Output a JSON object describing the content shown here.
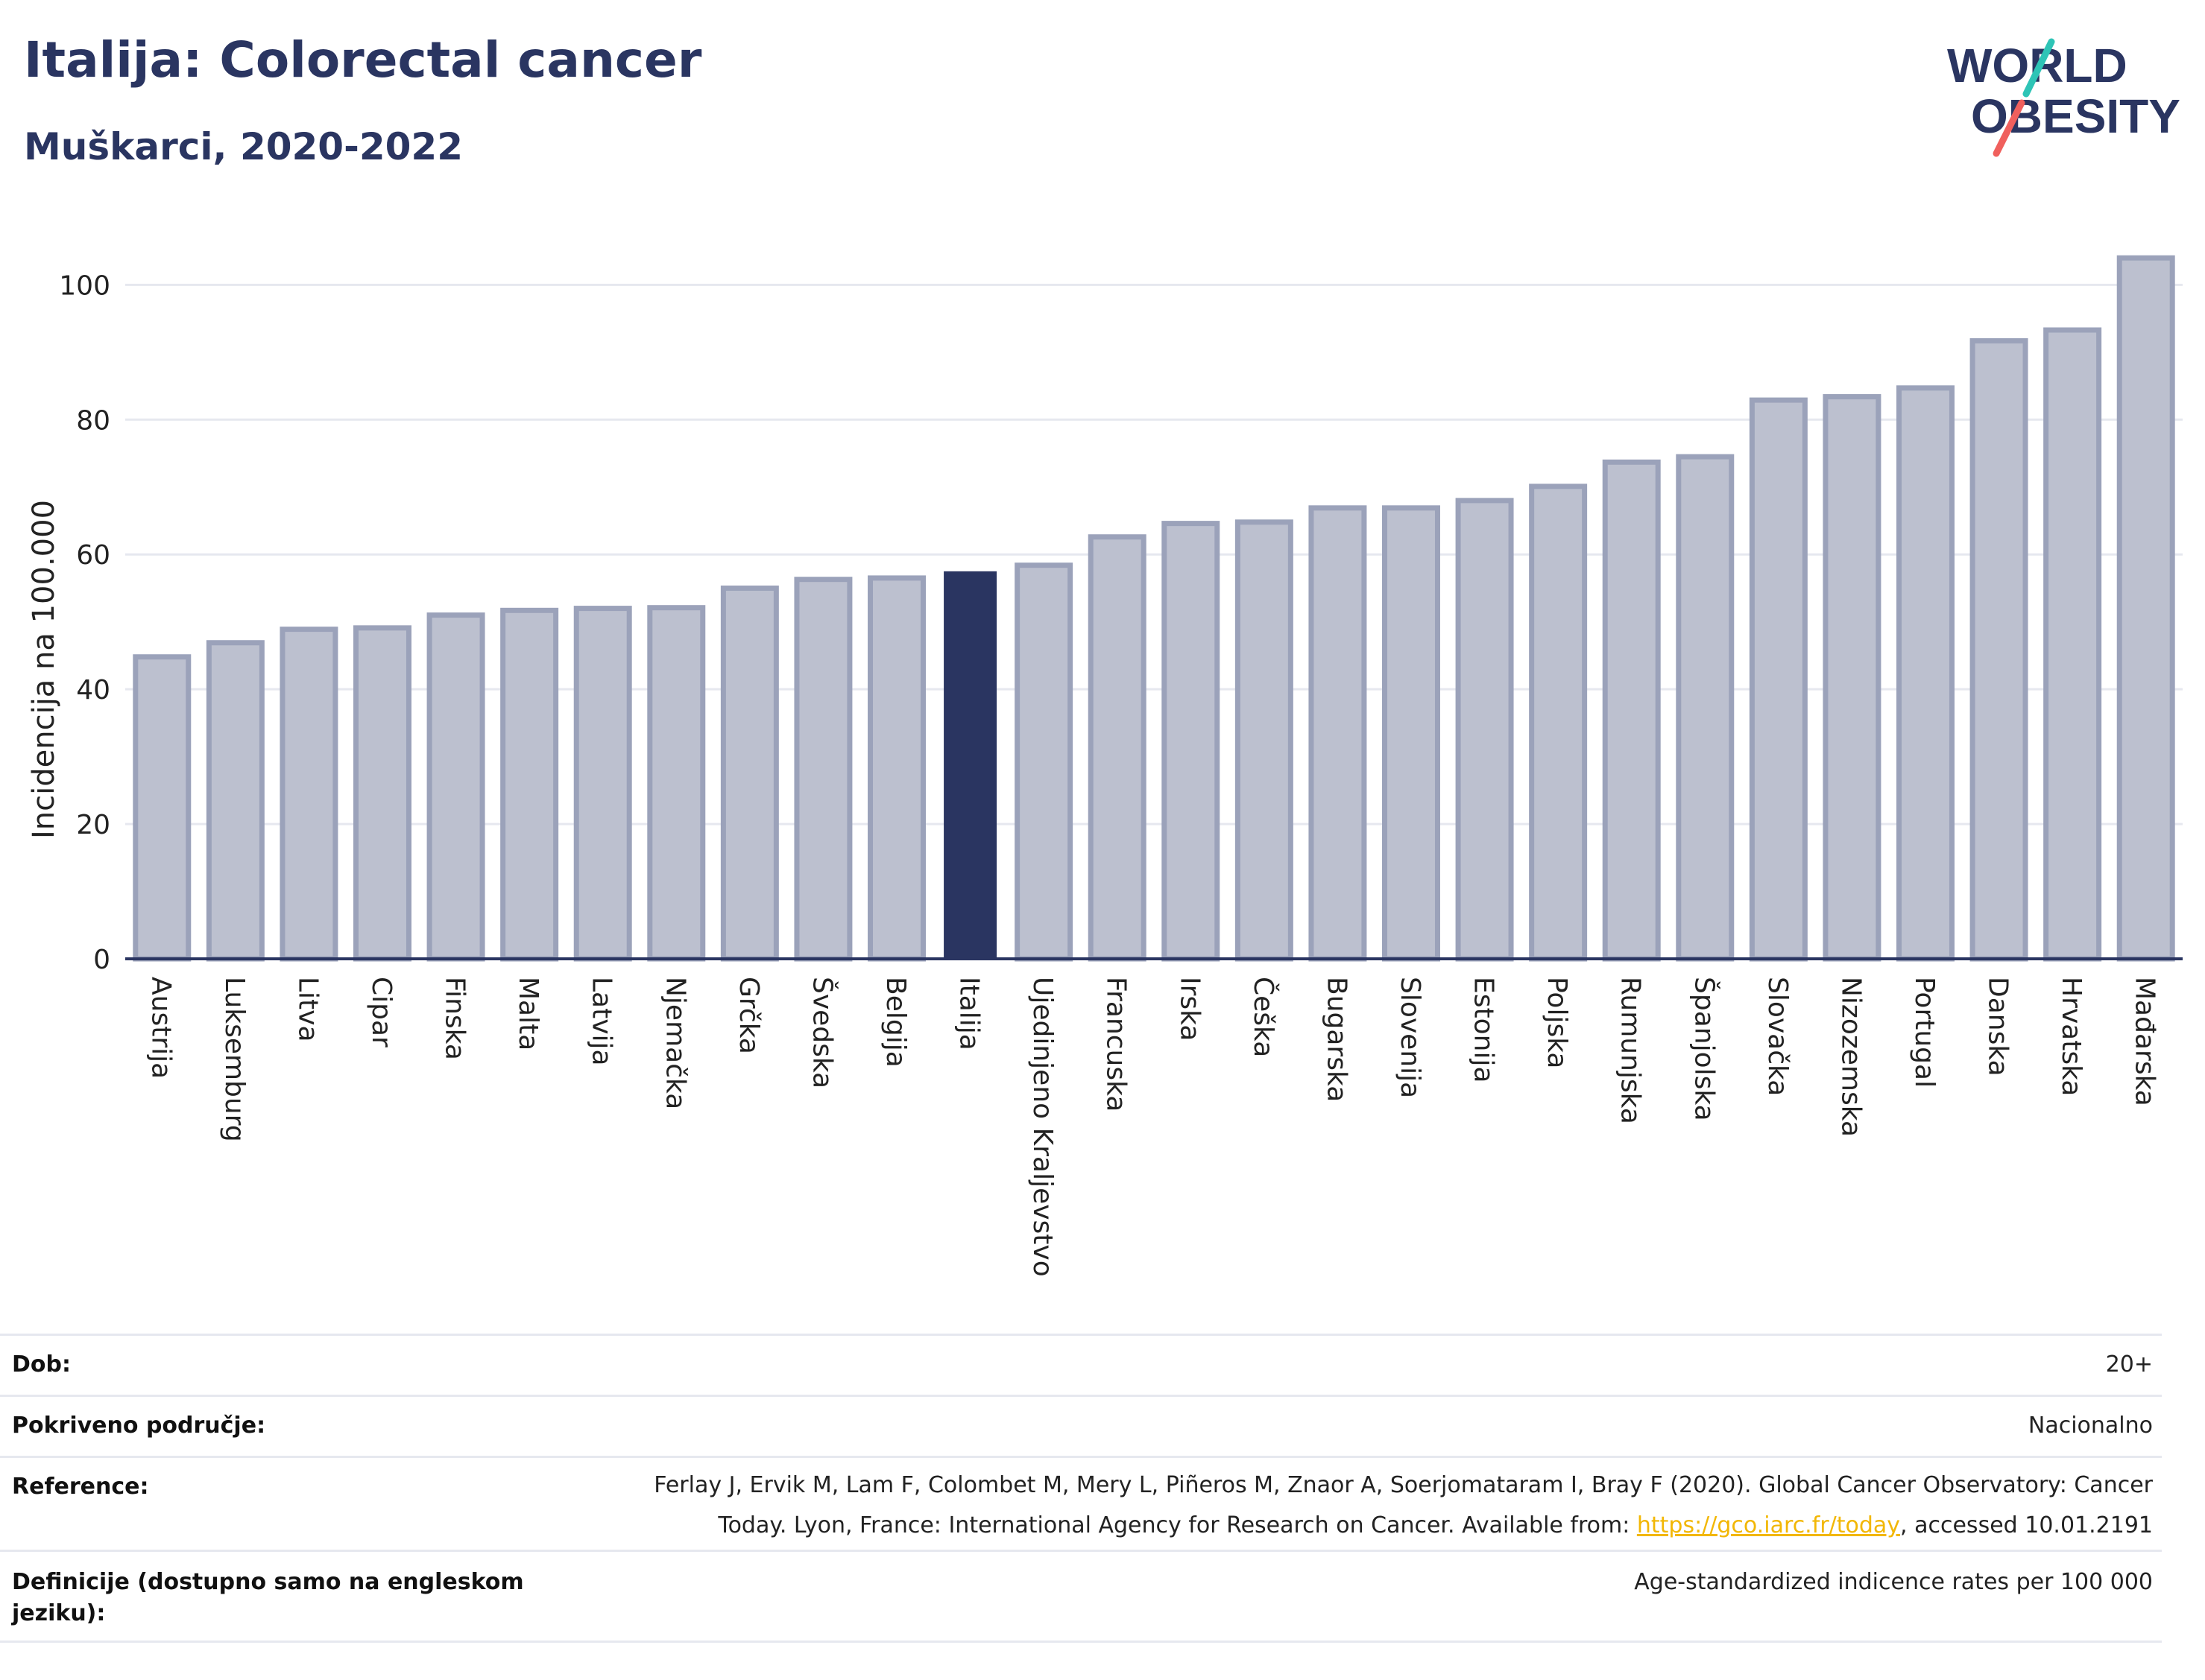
{
  "header": {
    "title": "Italija: Colorectal cancer",
    "subtitle": "Muškarci, 2020-2022"
  },
  "logo": {
    "line1": "WORLD",
    "line2": "OBESITY",
    "accent_colors": [
      "#2ec4b6",
      "#f0605d"
    ]
  },
  "colors": {
    "bar": "#bcc0cf",
    "bar_stroke": "#9ba2ba",
    "highlight": "#2a3561",
    "axis": "#2a3561",
    "grid": "#e6e8ef",
    "link": "#f2b705"
  },
  "chart_data": {
    "type": "bar",
    "ylabel": "Incidencija na 100.000",
    "ylim": [
      0,
      108
    ],
    "yticks": [
      0,
      20,
      40,
      60,
      80,
      100
    ],
    "grid": true,
    "highlight": "Italija",
    "categories": [
      "Austrija",
      "Luksemburg",
      "Litva",
      "Cipar",
      "Finska",
      "Malta",
      "Latvija",
      "Njemačka",
      "Grčka",
      "Švedska",
      "Belgija",
      "Italija",
      "Ujedinjeno Kraljevstvo",
      "Francuska",
      "Irska",
      "Češka",
      "Bugarska",
      "Slovenija",
      "Estonija",
      "Poljska",
      "Rumunjska",
      "Španjolska",
      "Slovačka",
      "Nizozemska",
      "Portugal",
      "Danska",
      "Hrvatska",
      "Mađarska"
    ],
    "values": [
      44.8,
      46.9,
      48.9,
      49.1,
      51.0,
      51.7,
      52.0,
      52.1,
      55.0,
      56.3,
      56.5,
      57.5,
      58.4,
      62.6,
      64.6,
      64.8,
      66.9,
      66.9,
      68.0,
      70.1,
      73.7,
      74.5,
      82.9,
      83.4,
      84.7,
      91.7,
      93.3,
      104.0
    ]
  },
  "meta": {
    "age_label": "Dob:",
    "age_value": "20+",
    "coverage_label": "Pokriveno područje:",
    "coverage_value": "Nacionalno",
    "reference_label": "Reference:",
    "reference_line1": "Ferlay J, Ervik M, Lam F, Colombet M, Mery L, Piñeros M, Znaor A, Soerjomataram I, Bray F (2020). Global Cancer Observatory: Cancer",
    "reference_line2_pre": "Today. Lyon, France: International Agency for Research on Cancer. Available from: ",
    "reference_link": "https://gco.iarc.fr/today",
    "reference_line2_post": ", accessed 10.01.2191",
    "definitions_label": "Definicije (dostupno samo na engleskom jeziku):",
    "definitions_value": "Age-standardized indicence rates per 100 000"
  }
}
